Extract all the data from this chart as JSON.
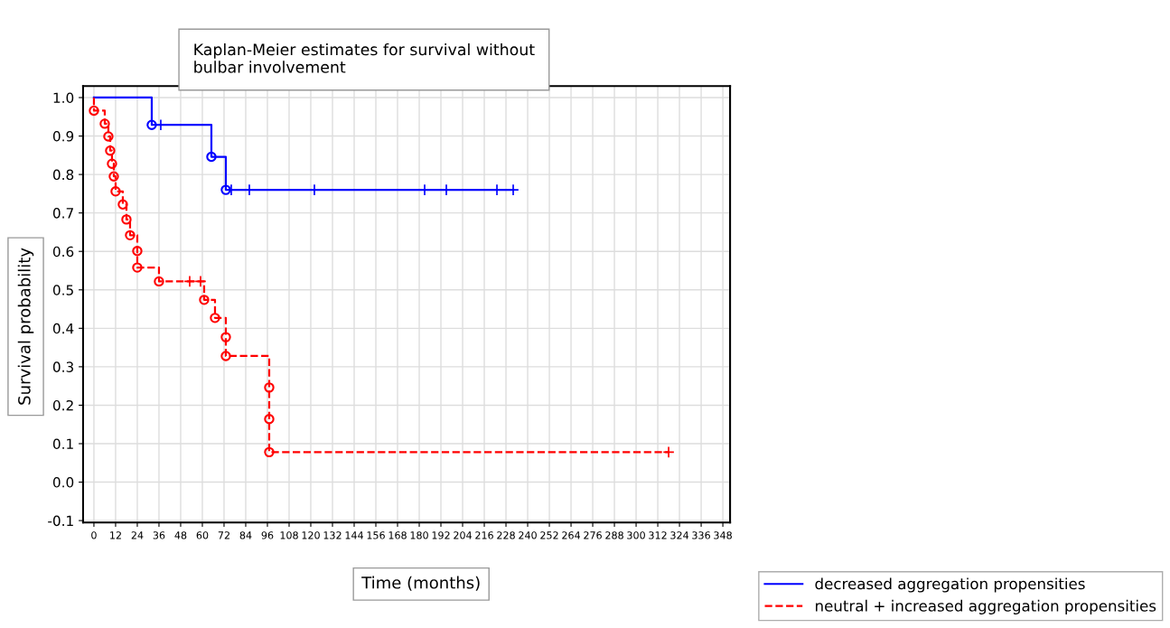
{
  "chart_data": {
    "type": "step",
    "title": "Kaplan-Meier estimates for survival without\nbulbar involvement",
    "xlabel": "Time (months)",
    "ylabel": "Survival probability",
    "xlim": [
      -6,
      352
    ],
    "ylim": [
      -0.105,
      1.03
    ],
    "xticks": [
      0,
      12,
      24,
      36,
      48,
      60,
      72,
      84,
      96,
      108,
      120,
      132,
      144,
      156,
      168,
      180,
      192,
      204,
      216,
      228,
      240,
      252,
      264,
      276,
      288,
      300,
      312,
      324,
      336,
      348
    ],
    "yticks": [
      {
        "value": -0.1,
        "label": "-0.1"
      },
      {
        "value": 0,
        "label": "0.0"
      },
      {
        "value": 0.1,
        "label": "0.1"
      },
      {
        "value": 0.2,
        "label": "0.2"
      },
      {
        "value": 0.3,
        "label": "0.3"
      },
      {
        "value": 0.4,
        "label": "0.4"
      },
      {
        "value": 0.5,
        "label": "0.5"
      },
      {
        "value": 0.6,
        "label": "0.6"
      },
      {
        "value": 0.7,
        "label": "0.7"
      },
      {
        "value": 0.8,
        "label": "0.8"
      },
      {
        "value": 0.9,
        "label": "0.9"
      },
      {
        "value": 1.0,
        "label": "1.0"
      }
    ],
    "grid": true,
    "legend": "bottom right",
    "series": [
      {
        "name": "decreased aggregation propensities",
        "type": "step",
        "color": "#0000ff",
        "line_style": "solid",
        "marker": "none",
        "x": [
          0,
          32,
          65,
          73,
          232
        ],
        "values": [
          1.0,
          0.929,
          0.846,
          0.76,
          0.76
        ]
      },
      {
        "name": "neutral + increased aggregation propensities",
        "type": "step",
        "color": "#ff0000",
        "line_style": "dashed",
        "marker": "none",
        "x": [
          0,
          0,
          6,
          8,
          9,
          10,
          11,
          12,
          16,
          18,
          20,
          24,
          24,
          36,
          61,
          67,
          73,
          73,
          97,
          97,
          97,
          318
        ],
        "values": [
          1.0,
          0.966,
          0.932,
          0.899,
          0.862,
          0.828,
          0.795,
          0.756,
          0.722,
          0.683,
          0.642,
          0.601,
          0.558,
          0.522,
          0.474,
          0.427,
          0.377,
          0.328,
          0.246,
          0.164,
          0.078,
          0.078
        ]
      },
      {
        "type": "scatter",
        "color": "#0000ff",
        "marker": "circle",
        "x": [
          32,
          65,
          73
        ],
        "values": [
          0.929,
          0.846,
          0.76
        ]
      },
      {
        "type": "scatter",
        "color": "#0000ff",
        "marker": "cross",
        "x": [
          37,
          76,
          86,
          122,
          183,
          195,
          223,
          232
        ],
        "values": [
          0.929,
          0.76,
          0.76,
          0.76,
          0.76,
          0.76,
          0.76,
          0.76
        ]
      },
      {
        "type": "scatter",
        "color": "#ff0000",
        "marker": "circle",
        "x": [
          0,
          6,
          8,
          9,
          10,
          11,
          12,
          16,
          18,
          20,
          24,
          24,
          36,
          61,
          67,
          73,
          73,
          97,
          97,
          97
        ],
        "values": [
          0.966,
          0.932,
          0.899,
          0.862,
          0.828,
          0.795,
          0.756,
          0.722,
          0.683,
          0.642,
          0.601,
          0.558,
          0.522,
          0.474,
          0.427,
          0.377,
          0.328,
          0.246,
          0.164,
          0.078
        ]
      },
      {
        "type": "scatter",
        "color": "#ff0000",
        "marker": "cross",
        "x": [
          53,
          59,
          318
        ],
        "values": [
          0.522,
          0.522,
          0.078
        ]
      }
    ]
  }
}
